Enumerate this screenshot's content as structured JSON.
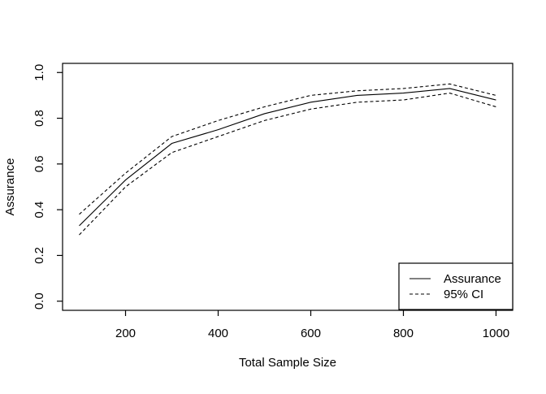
{
  "chart_data": {
    "type": "line",
    "title": "",
    "xlabel": "Total Sample Size",
    "ylabel": "Assurance",
    "x": [
      100,
      200,
      300,
      400,
      500,
      600,
      700,
      800,
      900,
      1000
    ],
    "series": [
      {
        "name": "Assurance",
        "line_style": "solid",
        "values": [
          0.33,
          0.53,
          0.69,
          0.75,
          0.82,
          0.87,
          0.9,
          0.91,
          0.93,
          0.88
        ]
      },
      {
        "name": "95% CI upper",
        "line_style": "dashed",
        "values": [
          0.38,
          0.56,
          0.72,
          0.79,
          0.85,
          0.9,
          0.92,
          0.93,
          0.95,
          0.9
        ]
      },
      {
        "name": "95% CI lower",
        "line_style": "dashed",
        "values": [
          0.29,
          0.5,
          0.65,
          0.72,
          0.79,
          0.84,
          0.87,
          0.88,
          0.91,
          0.85
        ]
      }
    ],
    "xticks": [
      200,
      400,
      600,
      800,
      1000
    ],
    "xtick_labels": [
      "200",
      "400",
      "600",
      "800",
      "1000"
    ],
    "yticks": [
      0.0,
      0.2,
      0.4,
      0.6,
      0.8,
      1.0
    ],
    "ytick_labels": [
      "0.0",
      "0.2",
      "0.4",
      "0.6",
      "0.8",
      "1.0"
    ],
    "xlim": [
      64,
      1036
    ],
    "ylim": [
      -0.04,
      1.04
    ],
    "grid": false,
    "legend": {
      "position": "bottomright",
      "entries": [
        {
          "label": "Assurance",
          "line_style": "solid"
        },
        {
          "label": "95% CI",
          "line_style": "dashed"
        }
      ]
    },
    "line_color": "#000000",
    "background_color": "#ffffff"
  }
}
